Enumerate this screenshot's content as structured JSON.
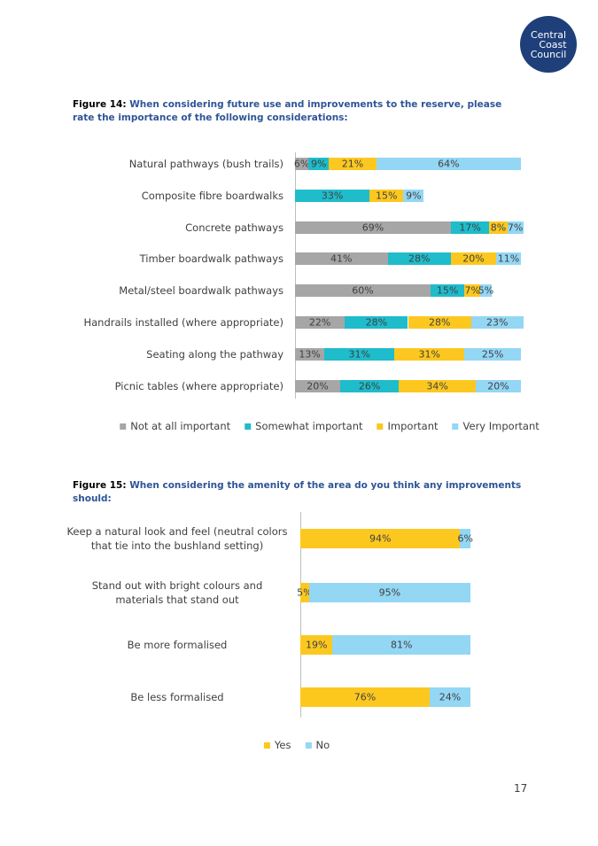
{
  "logo": [
    "Central",
    "Coast",
    "Council"
  ],
  "figures": [
    {
      "label": "Figure 14:",
      "caption": "When considering future use and improvements to the reserve, please rate the importance of the following considerations:"
    },
    {
      "label": "Figure 15:",
      "caption": "When considering the amenity of the area do you think any improvements should:"
    }
  ],
  "chart_data": [
    {
      "type": "bar",
      "orientation": "horizontal",
      "stacked": true,
      "legend": "bottom",
      "categories": [
        "Natural pathways (bush trails)",
        "Composite fibre boardwalks",
        "Concrete pathways",
        "Timber boardwalk pathways",
        "Metal/steel boardwalk pathways",
        "Handrails installed (where appropriate)",
        "Seating along the pathway",
        "Picnic tables (where appropriate)"
      ],
      "series": [
        {
          "name": "Not at all important",
          "color": "#a6a6a6",
          "values": [
            6,
            null,
            69,
            41,
            60,
            22,
            13,
            20
          ],
          "value_labels": [
            "6%",
            null,
            "69%",
            "41%",
            "60%",
            "22%",
            "13%",
            "20%"
          ]
        },
        {
          "name": "Somewhat important",
          "color": "#1fbccb",
          "values": [
            9,
            33,
            17,
            28,
            15,
            28,
            31,
            26
          ],
          "value_labels": [
            "9%",
            "33%",
            "17%",
            "28%",
            "15%",
            "28%",
            "31%",
            "26%"
          ]
        },
        {
          "name": "Important",
          "color": "#fcc820",
          "values": [
            21,
            15,
            8,
            20,
            7,
            28,
            31,
            34
          ],
          "value_labels": [
            "21%",
            "15%",
            "8%",
            "20%",
            "7%",
            "28%",
            "31%",
            "34%"
          ]
        },
        {
          "name": "Very Important",
          "color": "#93d7f5",
          "values": [
            64,
            9,
            7,
            11,
            5,
            23,
            25,
            20
          ],
          "value_labels": [
            "64%",
            "9%",
            "7%",
            "11%",
            "5%",
            "23%",
            "25%",
            "20%"
          ]
        }
      ]
    },
    {
      "type": "bar",
      "orientation": "horizontal",
      "stacked": true,
      "legend": "bottom",
      "categories": [
        "Keep a natural look and feel (neutral colors that tie into the bushland setting)",
        "Stand out with bright colours and materials that stand out",
        "Be more formalised",
        "Be less formalised"
      ],
      "series": [
        {
          "name": "Yes",
          "color": "#fcc820",
          "values": [
            94,
            5,
            19,
            76
          ],
          "value_labels": [
            "94%",
            "5%",
            "19%",
            "76%"
          ]
        },
        {
          "name": "No",
          "color": "#93d7f5",
          "values": [
            6,
            95,
            81,
            24
          ],
          "value_labels": [
            "6%",
            "95%",
            "81%",
            "24%"
          ]
        }
      ]
    }
  ],
  "page_number": "17"
}
